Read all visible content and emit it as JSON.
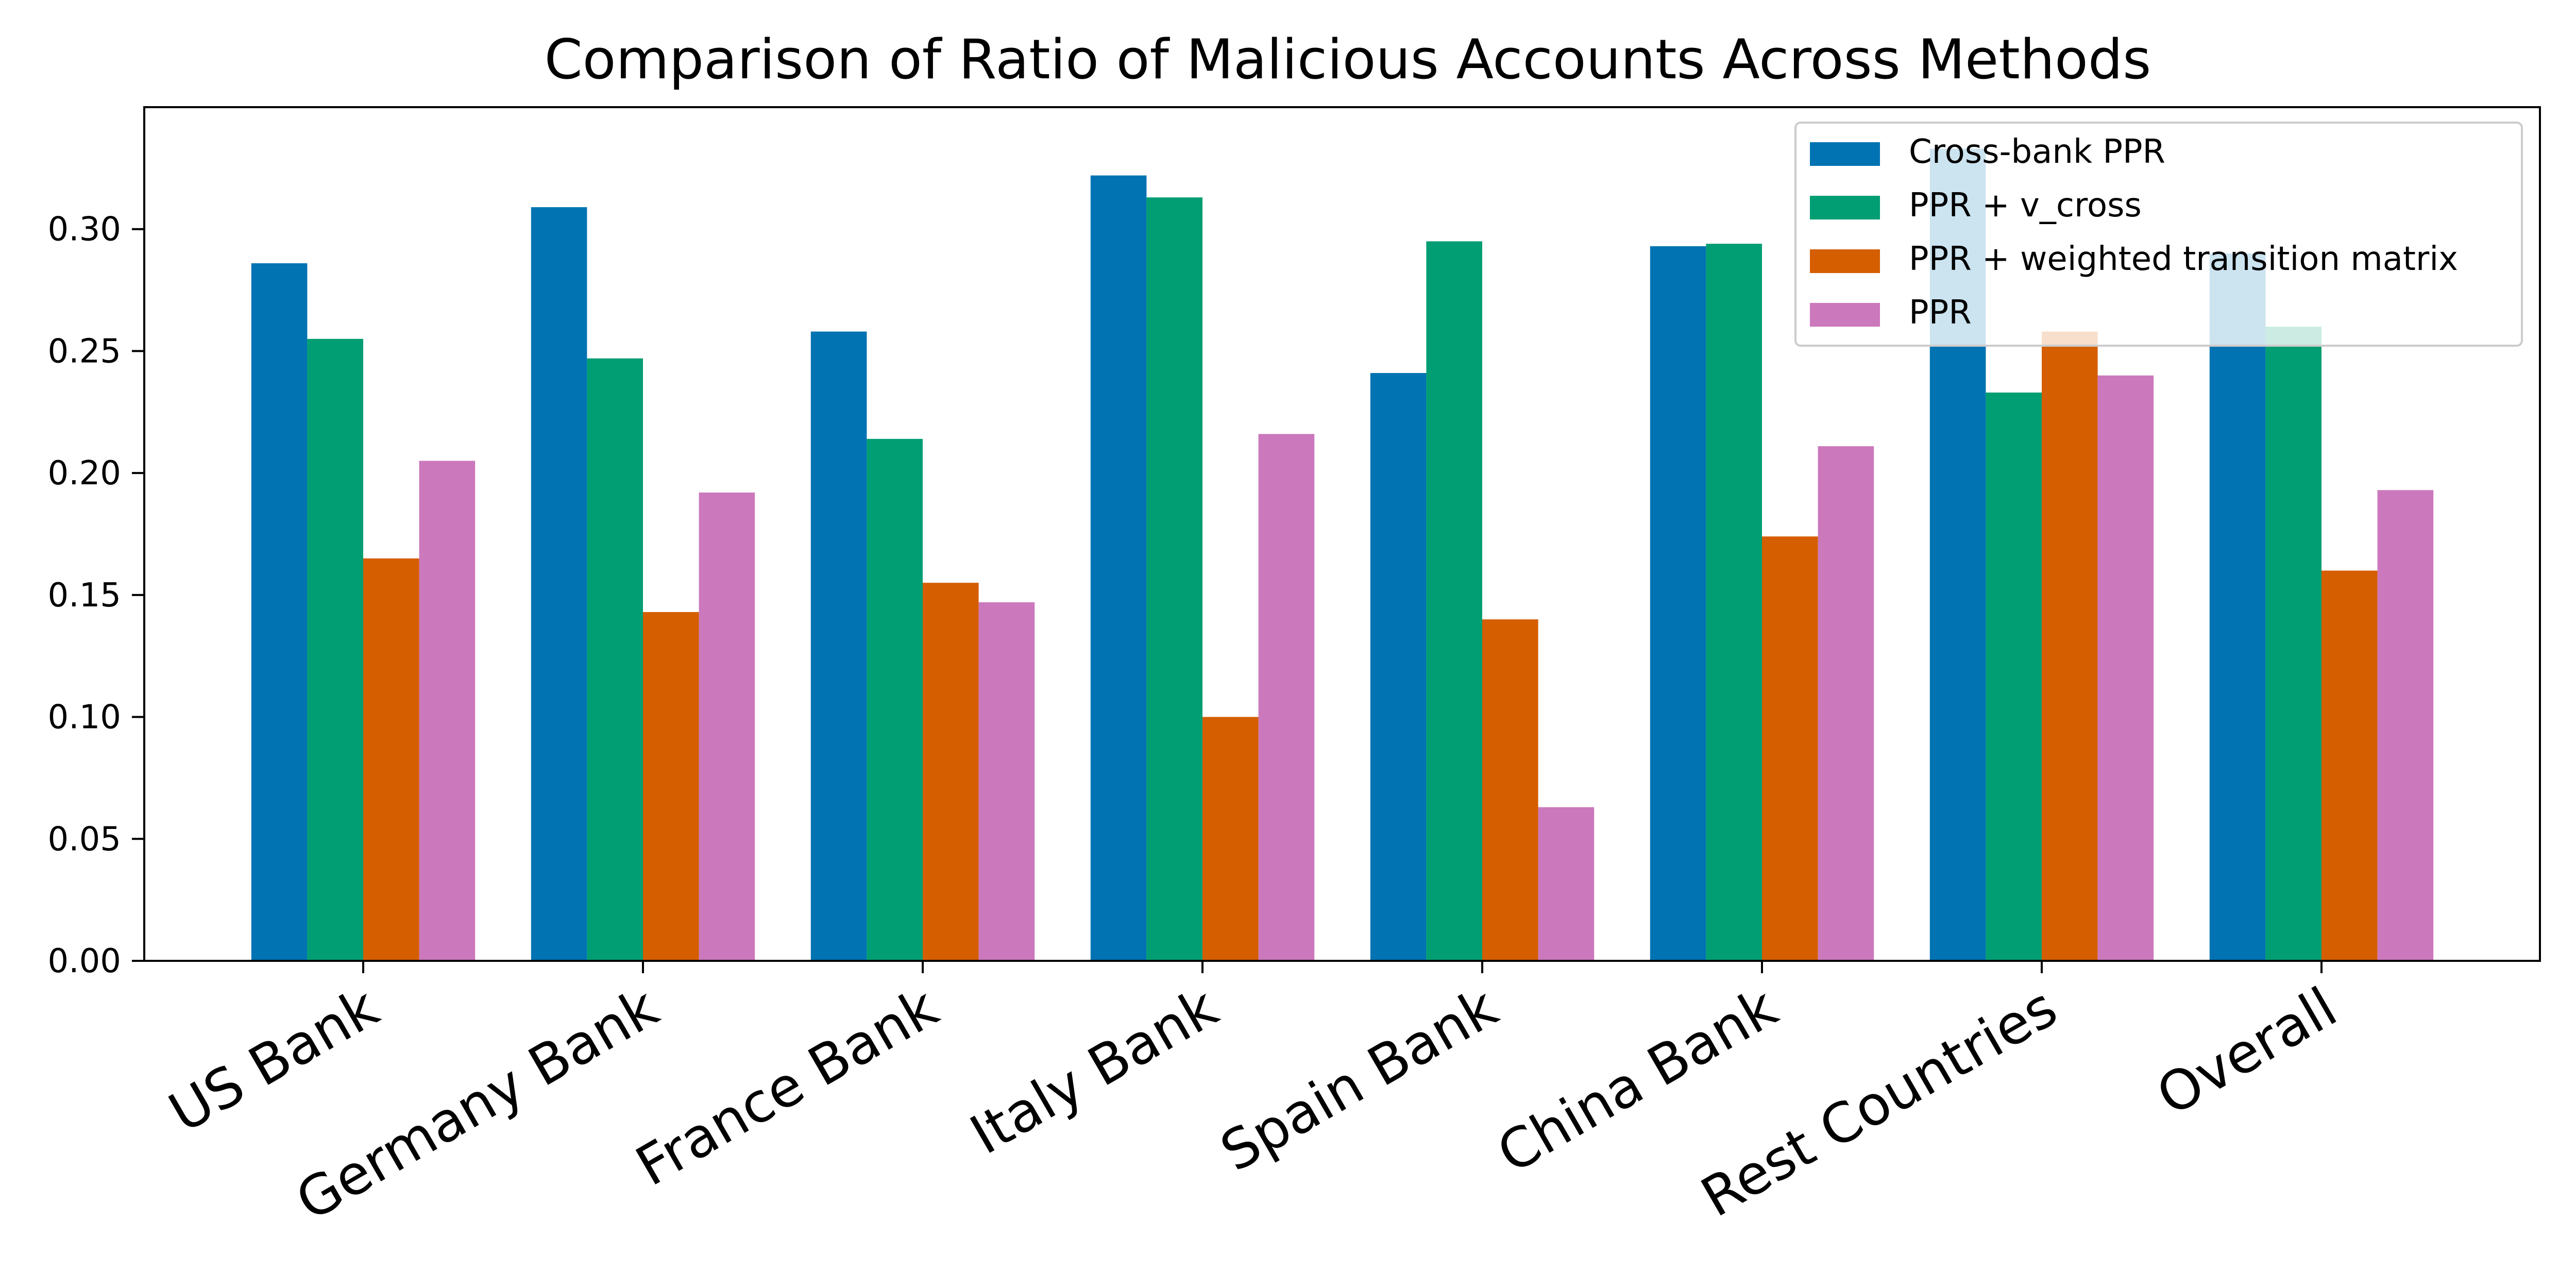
{
  "chart_data": {
    "type": "bar",
    "title": "Comparison of Ratio of Malicious Accounts Across Methods",
    "xlabel": "",
    "ylabel": "",
    "categories": [
      "US Bank",
      "Germany Bank",
      "France Bank",
      "Italy Bank",
      "Spain Bank",
      "China Bank",
      "Rest Countries",
      "Overall"
    ],
    "series": [
      {
        "name": "Cross-bank PPR",
        "color": "#0173b2",
        "values": [
          0.286,
          0.309,
          0.258,
          0.322,
          0.241,
          0.293,
          0.333,
          0.29
        ]
      },
      {
        "name": "PPR + v_cross",
        "color": "#029e73",
        "values": [
          0.255,
          0.247,
          0.214,
          0.313,
          0.295,
          0.294,
          0.233,
          0.26
        ]
      },
      {
        "name": "PPR + weighted transition matrix",
        "color": "#d55e00",
        "values": [
          0.165,
          0.143,
          0.155,
          0.1,
          0.14,
          0.174,
          0.258,
          0.16
        ]
      },
      {
        "name": "PPR",
        "color": "#cc78bc",
        "values": [
          0.205,
          0.192,
          0.147,
          0.216,
          0.063,
          0.211,
          0.24,
          0.193
        ]
      }
    ],
    "ylim": [
      0,
      0.35
    ],
    "yticks": [
      0.0,
      0.05,
      0.1,
      0.15,
      0.2,
      0.25,
      0.3
    ],
    "ytick_labels": [
      "0.00",
      "0.05",
      "0.10",
      "0.15",
      "0.20",
      "0.25",
      "0.30"
    ],
    "grid": false,
    "legend_position": "top-right"
  }
}
